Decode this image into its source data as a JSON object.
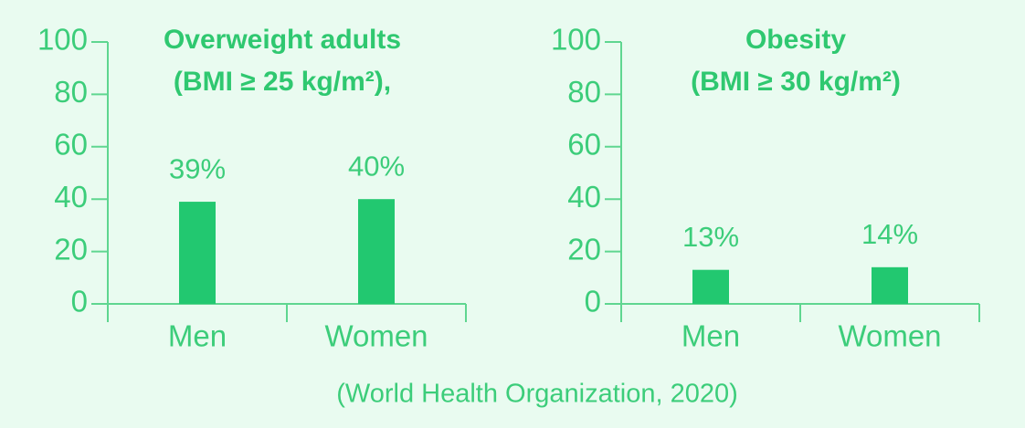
{
  "chart_data": [
    {
      "type": "bar",
      "title": [
        "Overweight adults",
        "(BMI ≥ 25 kg/m²),"
      ],
      "categories": [
        "Men",
        "Women"
      ],
      "values": [
        39,
        40
      ],
      "value_labels": [
        "39%",
        "40%"
      ],
      "color": "#22c870",
      "ylim": [
        0,
        100
      ],
      "yticks": [
        0,
        20,
        40,
        60,
        80,
        100
      ]
    },
    {
      "type": "bar",
      "title": [
        "Obesity",
        "(BMI ≥ 30 kg/m²)"
      ],
      "categories": [
        "Men",
        "Women"
      ],
      "values": [
        13,
        14
      ],
      "value_labels": [
        "13%",
        "14%"
      ],
      "color": "#22c870",
      "ylim": [
        0,
        100
      ],
      "yticks": [
        0,
        20,
        40,
        60,
        80,
        100
      ]
    }
  ],
  "source": "(World Health Organization, 2020)"
}
